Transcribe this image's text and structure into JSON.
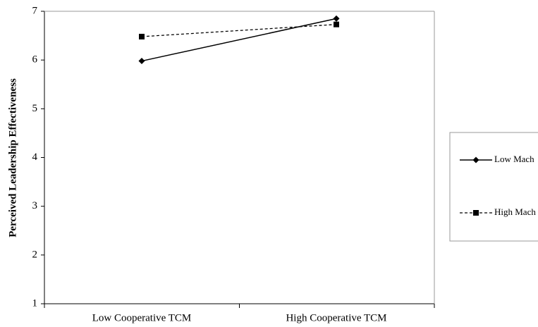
{
  "chart_data": {
    "type": "line",
    "categories": [
      "Low Cooperative TCM",
      "High Cooperative TCM"
    ],
    "series": [
      {
        "name": "Low Mach",
        "values": [
          5.98,
          6.85
        ],
        "line_style": "solid",
        "marker": "diamond",
        "color": "#000000"
      },
      {
        "name": "High Mach",
        "values": [
          6.48,
          6.73
        ],
        "line_style": "dashed",
        "marker": "square",
        "color": "#000000"
      }
    ],
    "yticks": [
      1,
      2,
      3,
      4,
      5,
      6,
      7
    ],
    "ylim": [
      1,
      7
    ],
    "ylabel": "Perceived Leadership Effectiveness",
    "xlabel": "",
    "grid": false,
    "legend_position": "right"
  }
}
